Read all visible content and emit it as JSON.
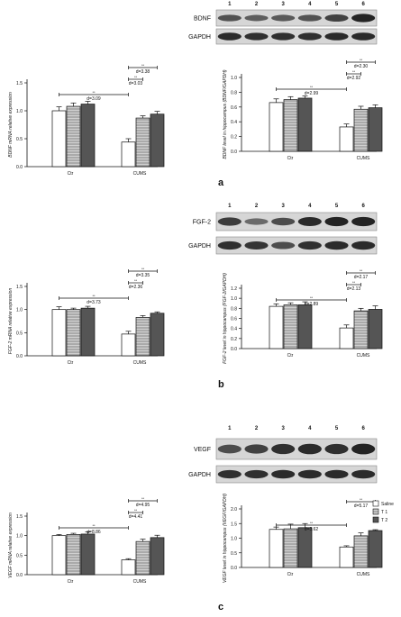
{
  "chart_data": [
    {
      "type": "bar",
      "panel": "a",
      "ylabel": "BDNF mRNA relative expression",
      "ylim": [
        0,
        1.5
      ],
      "yticks": [
        "0.0",
        "0.5",
        "1.0",
        "1.5"
      ],
      "categories": [
        "Ctr",
        "CUMS"
      ],
      "series": [
        {
          "values": [
            1.0,
            0.44
          ]
        },
        {
          "values": [
            1.08,
            0.87
          ]
        },
        {
          "values": [
            1.12,
            0.94
          ]
        }
      ],
      "errors": [
        [
          0.07,
          0.06
        ],
        [
          0.06,
          0.04
        ],
        [
          0.05,
          0.05
        ]
      ],
      "annotations": [
        {
          "groups": [
            0,
            1
          ],
          "stars": "**",
          "text": "d=3.09"
        },
        {
          "groups": [
            1,
            1
          ],
          "bars": [
            0,
            1
          ],
          "stars": "**",
          "text": "d=3.03"
        },
        {
          "groups": [
            1,
            1
          ],
          "bars": [
            0,
            2
          ],
          "stars": "**",
          "text": "d=3.38"
        }
      ]
    },
    {
      "type": "bar",
      "panel": "a",
      "ylabel": "BDNF level in hippocampus (BDNF/GAPDH)",
      "ylim": [
        0,
        1.0
      ],
      "yticks": [
        "0.0",
        "0.2",
        "0.4",
        "0.6",
        "0.8",
        "1.0"
      ],
      "categories": [
        "Ctr",
        "CUMS"
      ],
      "series": [
        {
          "values": [
            0.66,
            0.33
          ]
        },
        {
          "values": [
            0.7,
            0.57
          ]
        },
        {
          "values": [
            0.72,
            0.59
          ]
        }
      ],
      "errors": [
        [
          0.05,
          0.04
        ],
        [
          0.04,
          0.04
        ],
        [
          0.03,
          0.04
        ]
      ],
      "annotations": [
        {
          "groups": [
            0,
            1
          ],
          "stars": "**",
          "text": "d=2.99"
        },
        {
          "groups": [
            1,
            1
          ],
          "bars": [
            0,
            1
          ],
          "stars": "**",
          "text": "d=2.92"
        },
        {
          "groups": [
            1,
            1
          ],
          "bars": [
            0,
            2
          ],
          "stars": "**",
          "text": "d=2.30"
        }
      ]
    },
    {
      "type": "bar",
      "panel": "b",
      "ylabel": "FGF-2 mRNA relative expression",
      "ylim": [
        0,
        1.5
      ],
      "yticks": [
        "0.0",
        "0.5",
        "1.0",
        "1.5"
      ],
      "categories": [
        "Ctr",
        "CUMS"
      ],
      "series": [
        {
          "values": [
            1.0,
            0.47
          ]
        },
        {
          "values": [
            1.0,
            0.83
          ]
        },
        {
          "values": [
            1.03,
            0.92
          ]
        }
      ],
      "errors": [
        [
          0.06,
          0.06
        ],
        [
          0.03,
          0.04
        ],
        [
          0.04,
          0.03
        ]
      ],
      "annotations": [
        {
          "groups": [
            0,
            1
          ],
          "stars": "**",
          "text": "d=3.73"
        },
        {
          "groups": [
            1,
            1
          ],
          "bars": [
            0,
            1
          ],
          "stars": "**",
          "text": "d=2.36"
        },
        {
          "groups": [
            1,
            1
          ],
          "bars": [
            0,
            2
          ],
          "stars": "**",
          "text": "d=3.35"
        }
      ]
    },
    {
      "type": "bar",
      "panel": "b",
      "ylabel": "FGF-2 level in hippocampus (FGF-2/GAPDH)",
      "ylim": [
        0,
        1.2
      ],
      "yticks": [
        "0.0",
        "0.2",
        "0.4",
        "0.6",
        "0.8",
        "1.0",
        "1.2"
      ],
      "categories": [
        "Ctr",
        "CUMS"
      ],
      "series": [
        {
          "values": [
            0.84,
            0.41
          ]
        },
        {
          "values": [
            0.87,
            0.75
          ]
        },
        {
          "values": [
            0.87,
            0.78
          ]
        }
      ],
      "errors": [
        [
          0.05,
          0.06
        ],
        [
          0.04,
          0.05
        ],
        [
          0.06,
          0.07
        ]
      ],
      "annotations": [
        {
          "groups": [
            0,
            1
          ],
          "stars": "**",
          "text": "d=2.89"
        },
        {
          "groups": [
            1,
            1
          ],
          "bars": [
            0,
            1
          ],
          "stars": "**",
          "text": "d=2.13"
        },
        {
          "groups": [
            1,
            1
          ],
          "bars": [
            0,
            2
          ],
          "stars": "**",
          "text": "d=2.17"
        }
      ]
    },
    {
      "type": "bar",
      "panel": "c",
      "ylabel": "VEGF mRNA relative expression",
      "ylim": [
        0,
        1.5
      ],
      "yticks": [
        "0.0",
        "0.5",
        "1.0",
        "1.5"
      ],
      "categories": [
        "Ctr",
        "CUMS"
      ],
      "series": [
        {
          "values": [
            1.0,
            0.38
          ]
        },
        {
          "values": [
            1.03,
            0.85
          ]
        },
        {
          "values": [
            1.04,
            0.95
          ]
        }
      ],
      "errors": [
        [
          0.03,
          0.03
        ],
        [
          0.03,
          0.06
        ],
        [
          0.06,
          0.06
        ]
      ],
      "annotations": [
        {
          "groups": [
            0,
            1
          ],
          "stars": "**",
          "text": "d=8.86"
        },
        {
          "groups": [
            1,
            1
          ],
          "bars": [
            0,
            1
          ],
          "stars": "**",
          "text": "d=4.41"
        },
        {
          "groups": [
            1,
            1
          ],
          "bars": [
            0,
            2
          ],
          "stars": "**",
          "text": "d=4.95"
        }
      ]
    },
    {
      "type": "bar",
      "panel": "c",
      "ylabel": "VEGF level in hippocampus (VEGF/GAPDH)",
      "ylim": [
        0,
        2.0
      ],
      "yticks": [
        "0.0",
        "0.5",
        "1.0",
        "1.5",
        "2.0"
      ],
      "categories": [
        "Ctr",
        "CUMS"
      ],
      "series": [
        {
          "name": "Saline",
          "values": [
            1.3,
            0.7
          ]
        },
        {
          "name": "T 1",
          "values": [
            1.32,
            1.08
          ]
        },
        {
          "name": "T 2",
          "values": [
            1.36,
            1.26
          ]
        }
      ],
      "errors": [
        [
          0.08,
          0.04
        ],
        [
          0.16,
          0.1
        ],
        [
          0.14,
          0.03
        ]
      ],
      "annotations": [
        {
          "groups": [
            0,
            1
          ],
          "stars": "**",
          "text": "d=3.62"
        },
        {
          "groups": [
            1,
            1
          ],
          "bars": [
            0,
            2
          ],
          "stars": "**",
          "text": "d=5.17"
        }
      ]
    }
  ],
  "blots": [
    {
      "protein": "BDNF",
      "loading": "GAPDH",
      "lanes": [
        "1",
        "2",
        "3",
        "4",
        "5",
        "6"
      ]
    },
    {
      "protein": "FGF-2",
      "loading": "GAPDH",
      "lanes": [
        "1",
        "2",
        "3",
        "4",
        "5",
        "6"
      ]
    },
    {
      "protein": "VEGF",
      "loading": "GAPDH",
      "lanes": [
        "1",
        "2",
        "3",
        "4",
        "5",
        "6"
      ]
    }
  ],
  "panel_letters": [
    "a",
    "b",
    "c"
  ],
  "colors": {
    "saline": "#ffffff",
    "t1": "#b8b8b8",
    "t2": "#555555",
    "axis": "#111111",
    "blot_bg": "#d9d9d9",
    "band": "#1a1a1a"
  }
}
